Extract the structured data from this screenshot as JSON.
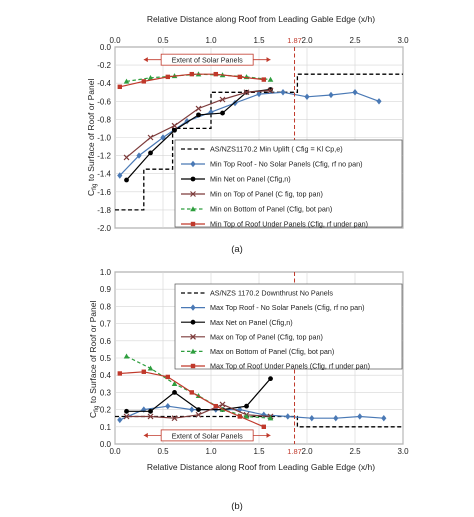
{
  "chart_data": [
    {
      "type": "line",
      "title": "Relative Distance along Roof  from Leading Gable Edge   (x/h)",
      "xlabel_top": "Relative Distance along Roof  from Leading Gable Edge   (x/h)",
      "ylabel": "C_fig to Surface of Roof or Panel",
      "ylabel_main": "C",
      "ylabel_sub": "fig",
      "ylabel_rest": " to Surface of Roof or Panel",
      "xlim": [
        0,
        3.0
      ],
      "ylim": [
        -2.0,
        0.0
      ],
      "xticks": [
        "0.0",
        "0.5",
        "1.0",
        "1.5",
        "2.0",
        "2.5",
        "3.0"
      ],
      "yticks": [
        "0.0",
        "-0.2",
        "-0.4",
        "-0.6",
        "-0.8",
        "-1.0",
        "-1.2",
        "-1.4",
        "-1.6",
        "-1.8",
        "-2.0"
      ],
      "grid": true,
      "panel_label": "(a)",
      "annotation_box": {
        "text": "Extent of Solar Panels",
        "x_start": 0.3,
        "x_end": 1.62,
        "y": -0.14
      },
      "vline": {
        "x": 1.87,
        "label": "1.87",
        "color": "#c0392b"
      },
      "legend_position": "bottom-right",
      "series": [
        {
          "name": "AS/NZS1170.2 Min Uplift ( Cfig = Kl Cp,e)",
          "color": "#000000",
          "style": "step-dash",
          "x": [
            0,
            0.3,
            0.3,
            0.6,
            0.6,
            0.9,
            0.9,
            1.0,
            1.0,
            1.9,
            1.9,
            3.0
          ],
          "y": [
            -1.8,
            -1.8,
            -1.35,
            -1.35,
            -0.9,
            -0.9,
            -0.9,
            -0.9,
            -0.5,
            -0.5,
            -0.3,
            -0.3
          ]
        },
        {
          "name": "Min Top Roof - No Solar Panels (Cfig, rf no pan)",
          "color": "#4a79b5",
          "style": "solid",
          "marker": "diamond",
          "x": [
            0.05,
            0.25,
            0.5,
            0.75,
            1.0,
            1.25,
            1.5,
            1.75,
            2.0,
            2.25,
            2.5,
            2.75
          ],
          "y": [
            -1.42,
            -1.2,
            -1.0,
            -0.82,
            -0.72,
            -0.62,
            -0.52,
            -0.5,
            -0.55,
            -0.53,
            -0.5,
            -0.6
          ]
        },
        {
          "name": "Min Net on Panel      (Cfig,n)",
          "color": "#000000",
          "style": "solid",
          "marker": "circle",
          "x": [
            0.12,
            0.37,
            0.62,
            0.87,
            1.12,
            1.37,
            1.62
          ],
          "y": [
            -1.47,
            -1.17,
            -0.92,
            -0.75,
            -0.73,
            -0.5,
            -0.47
          ]
        },
        {
          "name": "Min on Top of Panel    (C fig, top pan)",
          "color": "#7d3b3b",
          "style": "solid",
          "marker": "x",
          "x": [
            0.12,
            0.37,
            0.62,
            0.87,
            1.12,
            1.37,
            1.62
          ],
          "y": [
            -1.22,
            -1.0,
            -0.87,
            -0.68,
            -0.58,
            -0.5,
            -0.48
          ]
        },
        {
          "name": "Min on Bottom of Panel      (Cfig, bot pan)",
          "color": "#2e9e3e",
          "style": "dash",
          "marker": "triangle",
          "x": [
            0.12,
            0.37,
            0.62,
            0.87,
            1.12,
            1.37,
            1.62
          ],
          "y": [
            -0.38,
            -0.34,
            -0.32,
            -0.3,
            -0.31,
            -0.33,
            -0.36
          ]
        },
        {
          "name": "Min Top of Roof Under Panels (Cfig, rf under pan)",
          "color": "#c0392b",
          "style": "solid",
          "marker": "square",
          "x": [
            0.05,
            0.3,
            0.55,
            0.8,
            1.05,
            1.3,
            1.55
          ],
          "y": [
            -0.44,
            -0.38,
            -0.33,
            -0.3,
            -0.3,
            -0.33,
            -0.36
          ]
        }
      ]
    },
    {
      "type": "line",
      "xlabel": "Relative Distance along Roof  from Leading Gable Edge   (x/h)",
      "ylabel": "C_fig to Surface of Roof or Panel",
      "ylabel_main": "C",
      "ylabel_sub": "fig",
      "ylabel_rest": " to Surface of Roof or Panel",
      "xlim": [
        0,
        3.0
      ],
      "ylim": [
        0,
        1.0
      ],
      "xticks": [
        "0.0",
        "0.5",
        "1.0",
        "1.5",
        "2.0",
        "2.5",
        "3.0"
      ],
      "yticks": [
        "1.0",
        "0.9",
        "0.8",
        "0.7",
        "0.6",
        "0.5",
        "0.4",
        "0.3",
        "0.2",
        "0.1",
        "0.0"
      ],
      "grid": true,
      "panel_label": "(b)",
      "annotation_box": {
        "text": "Extent of Solar Panels",
        "x_start": 0.3,
        "x_end": 1.62,
        "y": 0.05
      },
      "vline": {
        "x": 1.87,
        "label": "1.87",
        "color": "#c0392b"
      },
      "legend_position": "top-right",
      "series": [
        {
          "name": "AS/NZS 1170.2 Downthrust  No Panels",
          "color": "#000000",
          "style": "step-dash",
          "x": [
            0,
            1.9,
            1.9,
            3.0
          ],
          "y": [
            0.16,
            0.16,
            0.1,
            0.1
          ]
        },
        {
          "name": "Max Top Roof - No Solar Panels (Cfig, rf no pan)",
          "color": "#4a79b5",
          "style": "solid",
          "marker": "diamond",
          "x": [
            0.05,
            0.3,
            0.55,
            0.8,
            1.05,
            1.3,
            1.55,
            1.8,
            2.05,
            2.3,
            2.55,
            2.8
          ],
          "y": [
            0.14,
            0.2,
            0.22,
            0.2,
            0.2,
            0.2,
            0.17,
            0.16,
            0.15,
            0.15,
            0.16,
            0.15
          ]
        },
        {
          "name": "Max Net on Panel      (Cfig,n)",
          "color": "#000000",
          "style": "solid",
          "marker": "circle",
          "x": [
            0.12,
            0.37,
            0.62,
            0.87,
            1.12,
            1.37,
            1.62
          ],
          "y": [
            0.19,
            0.19,
            0.3,
            0.2,
            0.2,
            0.22,
            0.38
          ]
        },
        {
          "name": "Max on Top of Panel    (Cfig, top pan)",
          "color": "#7d3b3b",
          "style": "solid",
          "marker": "x",
          "x": [
            0.12,
            0.37,
            0.62,
            0.87,
            1.12,
            1.37,
            1.62
          ],
          "y": [
            0.16,
            0.16,
            0.15,
            0.17,
            0.23,
            0.17,
            0.16
          ]
        },
        {
          "name": "Max on Bottom of Panel      (Cfig, bot pan)",
          "color": "#2e9e3e",
          "style": "dash",
          "marker": "triangle",
          "x": [
            0.12,
            0.37,
            0.62,
            0.87,
            1.12,
            1.37,
            1.62
          ],
          "y": [
            0.51,
            0.44,
            0.35,
            0.28,
            0.2,
            0.16,
            0.15
          ]
        },
        {
          "name": "Max Top of Roof Under Panels (Cfig, rf under pan)",
          "color": "#c0392b",
          "style": "solid",
          "marker": "square",
          "x": [
            0.05,
            0.3,
            0.55,
            0.8,
            1.05,
            1.3,
            1.55
          ],
          "y": [
            0.41,
            0.42,
            0.39,
            0.3,
            0.22,
            0.16,
            0.1
          ]
        }
      ]
    }
  ]
}
